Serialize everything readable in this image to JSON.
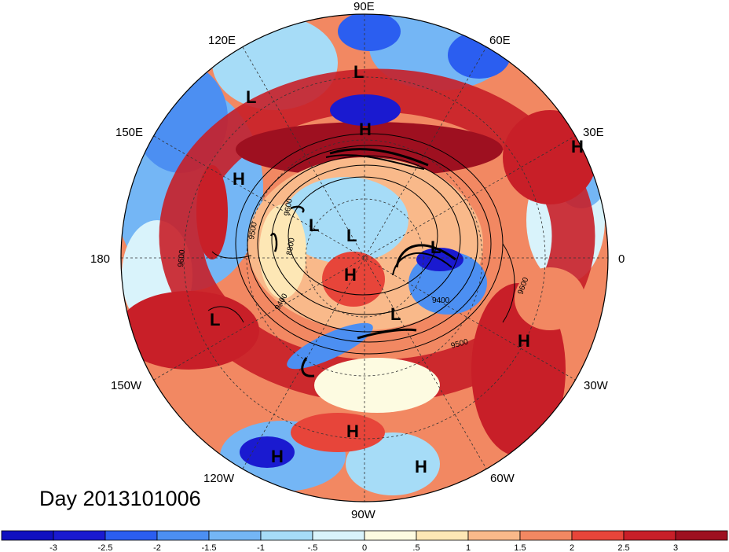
{
  "title": "Day 2013101006",
  "longitude_labels": [
    {
      "id": "lon-90e",
      "text": "90E"
    },
    {
      "id": "lon-60e",
      "text": "60E"
    },
    {
      "id": "lon-120e",
      "text": "120E"
    },
    {
      "id": "lon-150e",
      "text": "150E"
    },
    {
      "id": "lon-30e",
      "text": "30E"
    },
    {
      "id": "lon-180",
      "text": "180"
    },
    {
      "id": "lon-0",
      "text": "0"
    },
    {
      "id": "lon-150w",
      "text": "150W"
    },
    {
      "id": "lon-30w",
      "text": "30W"
    },
    {
      "id": "lon-120w",
      "text": "120W"
    },
    {
      "id": "lon-60w",
      "text": "60W"
    },
    {
      "id": "lon-90w",
      "text": "90W"
    }
  ],
  "pressure_centers": [
    {
      "id": "hl-l-1",
      "text": "L"
    },
    {
      "id": "hl-l-2",
      "text": "L"
    },
    {
      "id": "hl-h-1",
      "text": "H"
    },
    {
      "id": "hl-h-2",
      "text": "H"
    },
    {
      "id": "hl-h-3",
      "text": "H"
    },
    {
      "id": "hl-l-3",
      "text": "L"
    },
    {
      "id": "hl-l-4",
      "text": "L"
    },
    {
      "id": "hl-h-4",
      "text": "H"
    },
    {
      "id": "hl-l-5",
      "text": "L"
    },
    {
      "id": "hl-l-6",
      "text": "L"
    },
    {
      "id": "hl-l-7",
      "text": "L"
    },
    {
      "id": "hl-h-5",
      "text": "H"
    },
    {
      "id": "hl-h-6",
      "text": "H"
    },
    {
      "id": "hl-h-7",
      "text": "H"
    },
    {
      "id": "hl-h-8",
      "text": "H"
    }
  ],
  "contour_labels": [
    {
      "id": "cl-9500-a",
      "text": "9500"
    },
    {
      "id": "cl-9600-a",
      "text": "9600"
    },
    {
      "id": "cl-9400-a",
      "text": "9400"
    },
    {
      "id": "cl-9400-b",
      "text": "9400"
    },
    {
      "id": "cl-9500-b",
      "text": "9500"
    },
    {
      "id": "cl-9600-b",
      "text": "9600"
    },
    {
      "id": "cl-9600-c",
      "text": "9600"
    },
    {
      "id": "cl-8800",
      "text": "8800"
    }
  ],
  "colorbar": {
    "tick_labels": [
      "-3",
      "-2.5",
      "-2",
      "-1.5",
      "-1",
      "-.5",
      "0",
      ".5",
      "1",
      "1.5",
      "2",
      "2.5",
      "3"
    ],
    "colors": [
      "#1a1ad0",
      "#2b5ef0",
      "#4c8ff2",
      "#74b6f5",
      "#a6dcf7",
      "#d9f3fb",
      "#fdfbe1",
      "#fde7b5",
      "#f9b98a",
      "#f28862",
      "#e7453a",
      "#c81f28",
      "#9e1020"
    ]
  }
}
